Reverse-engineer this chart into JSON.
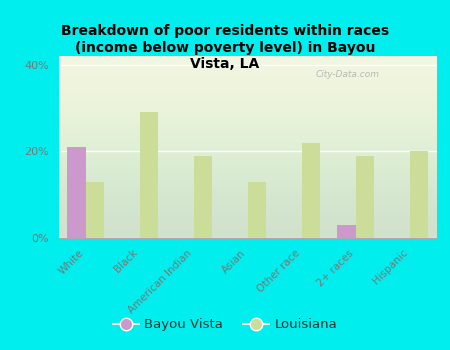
{
  "title": "Breakdown of poor residents within races\n(income below poverty level) in Bayou\nVista, LA",
  "categories": [
    "White",
    "Black",
    "American Indian",
    "Asian",
    "Other race",
    "2+ races",
    "Hispanic"
  ],
  "bayou_vista": [
    21,
    0,
    0,
    0,
    0,
    3,
    0
  ],
  "louisiana": [
    13,
    29,
    19,
    13,
    22,
    19,
    20
  ],
  "bayou_color": "#cc99cc",
  "louisiana_color": "#ccdd99",
  "background_color": "#00eeee",
  "plot_bg_color": "#eef5e2",
  "ylim": [
    0,
    42
  ],
  "yticks": [
    0,
    20,
    40
  ],
  "ytick_labels": [
    "0%",
    "20%",
    "40%"
  ],
  "bar_width": 0.35,
  "legend_bayou": "Bayou Vista",
  "legend_louisiana": "Louisiana",
  "watermark": "City-Data.com"
}
